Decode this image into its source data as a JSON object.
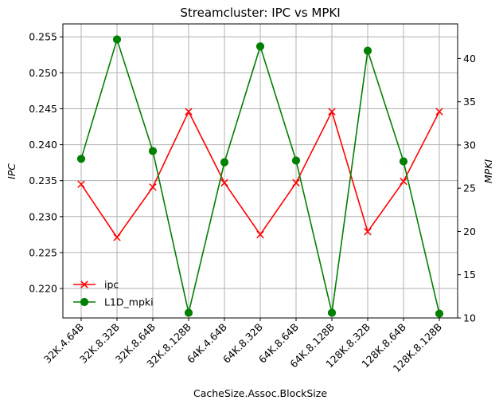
{
  "chart_data": {
    "type": "line",
    "title": "Streamcluster: IPC vs MPKI",
    "xlabel": "CacheSize.Assoc.BlockSize",
    "ylabel_left": "IPC",
    "ylabel_right": "MPKI",
    "categories": [
      "32K.4.64B",
      "32K.8.32B",
      "32K.8.64B",
      "32K.8.128B",
      "64K.4.64B",
      "64K.8.32B",
      "64K.8.64B",
      "64K.8.128B",
      "128K.8.32B",
      "128K.8.64B",
      "128K.8.128B"
    ],
    "ylim_left": [
      0.2159,
      0.2568
    ],
    "ylim_right": [
      10.0,
      44.0
    ],
    "yticks_left": [
      "0.220",
      "0.225",
      "0.230",
      "0.235",
      "0.240",
      "0.245",
      "0.250",
      "0.255"
    ],
    "yticks_right": [
      "10",
      "15",
      "20",
      "25",
      "30",
      "35",
      "40"
    ],
    "grid": true,
    "legend_position": "lower-left",
    "series": [
      {
        "name": "ipc",
        "axis": "left",
        "color": "#ff0000",
        "marker": "x",
        "values": [
          0.2345,
          0.2271,
          0.2341,
          0.2446,
          0.2347,
          0.2275,
          0.2347,
          0.2446,
          0.2279,
          0.2349,
          0.2446
        ]
      },
      {
        "name": "L1D_mpki",
        "axis": "right",
        "color": "#008000",
        "marker": "o",
        "values": [
          28.4,
          42.2,
          29.3,
          10.6,
          28.0,
          41.4,
          28.2,
          10.6,
          40.9,
          28.1,
          10.5
        ]
      }
    ]
  }
}
